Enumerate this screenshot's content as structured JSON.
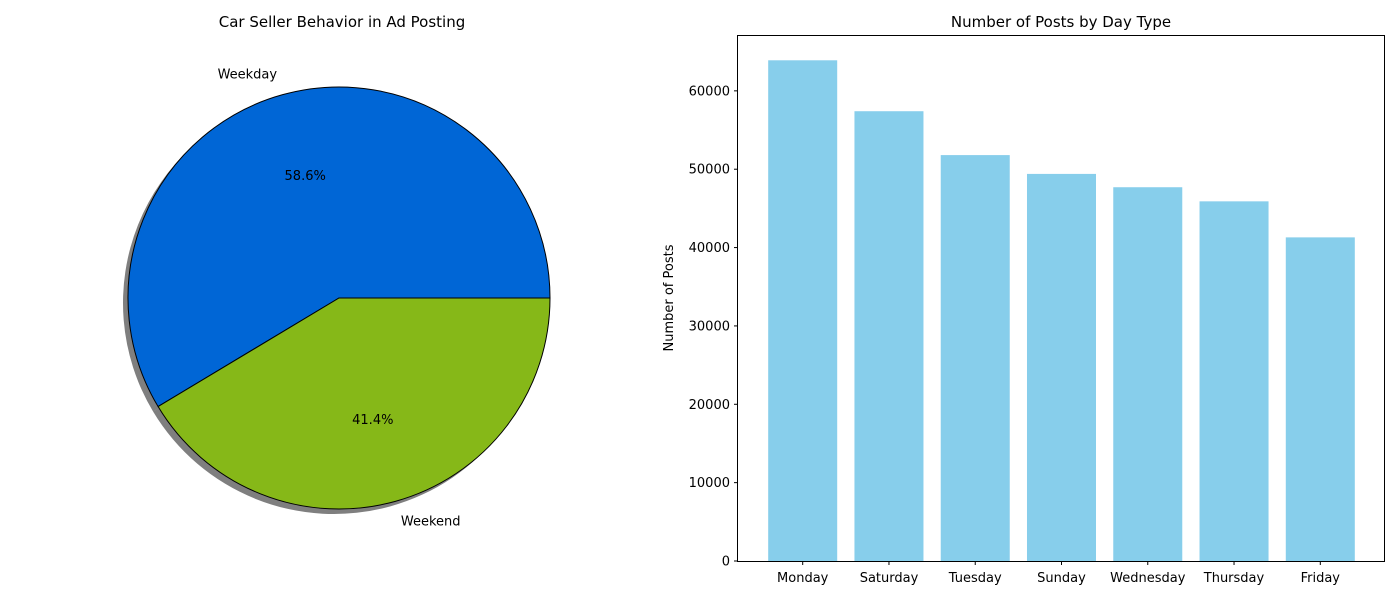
{
  "chart_data": [
    {
      "type": "pie",
      "title": "Car Seller Behavior in Ad Posting",
      "slices": [
        {
          "label": "Weekday",
          "value": 58.6,
          "pct_label": "58.6%",
          "color": "#0066d6"
        },
        {
          "label": "Weekend",
          "value": 41.4,
          "pct_label": "41.4%",
          "color": "#86b818"
        }
      ],
      "start_angle_deg": 0,
      "direction": "counterclockwise",
      "shadow": true,
      "edge_color": "#000000"
    },
    {
      "type": "bar",
      "title": "Number of Posts by Day Type",
      "xlabel": "",
      "ylabel": "Number of Posts",
      "categories": [
        "Monday",
        "Saturday",
        "Tuesday",
        "Sunday",
        "Wednesday",
        "Thursday",
        "Friday"
      ],
      "values": [
        63900,
        57400,
        51800,
        49400,
        47700,
        45900,
        41300
      ],
      "color": "#87ceeb",
      "ylim": [
        0,
        67000
      ],
      "yticks": [
        0,
        10000,
        20000,
        30000,
        40000,
        50000,
        60000
      ],
      "grid": false
    }
  ]
}
